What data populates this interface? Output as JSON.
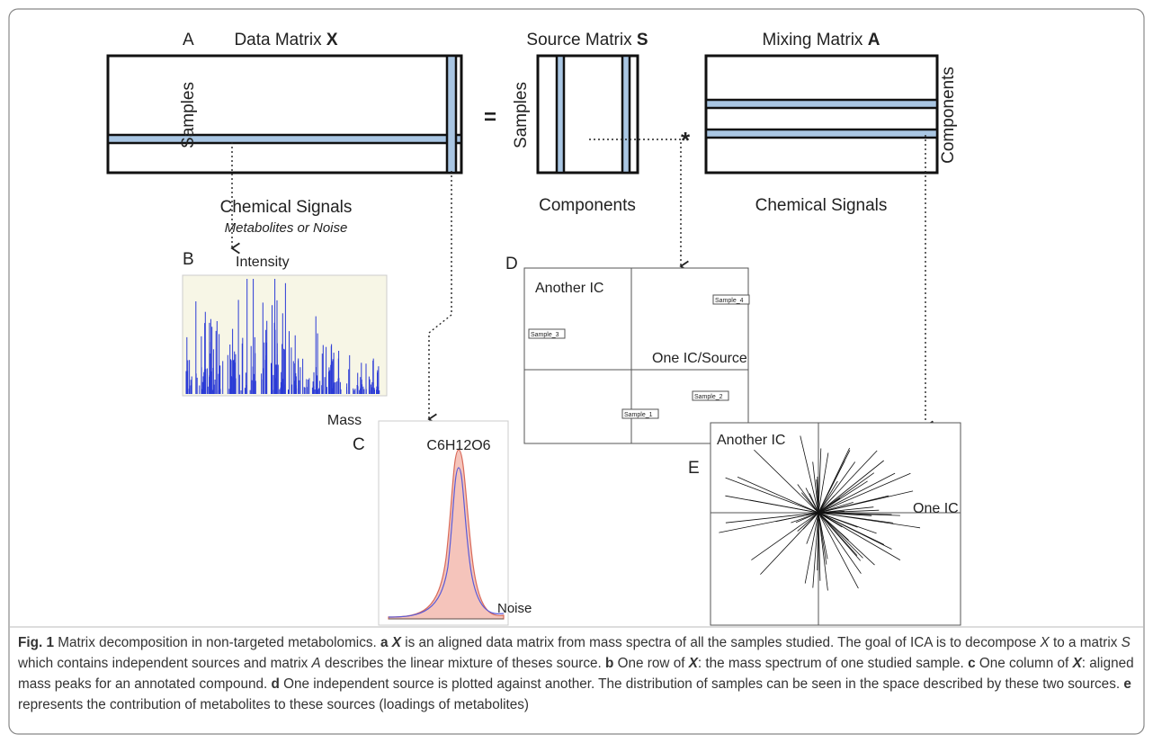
{
  "figure": {
    "panel_a": {
      "label": "A",
      "data_title": [
        "Data Matrix",
        "X"
      ],
      "source_title": [
        "Source Matrix",
        "S"
      ],
      "mixing_title": [
        "Mixing Matrix",
        "A"
      ],
      "samples_left": "Samples",
      "samples_mid": "Samples",
      "components_right": "Components",
      "equals": "=",
      "times": "*",
      "chemical_signals_left": "Chemical Signals",
      "metabolites_note": "Metabolites or Noise",
      "components_bottom": "Components",
      "chemical_signals_right": "Chemical Signals"
    },
    "panel_b": {
      "label": "B",
      "y_label": "Intensity",
      "x_label": "Mass"
    },
    "panel_c": {
      "label": "C",
      "compound": "C6H12O6",
      "noise": "Noise"
    },
    "panel_d": {
      "label": "D",
      "y_label": "Another IC",
      "x_label": "One IC/Source",
      "samples": [
        "Sample_1",
        "Sample_2",
        "Sample_3",
        "Sample_4"
      ]
    },
    "panel_e": {
      "label": "E",
      "y_label": "Another IC",
      "x_label": "One IC"
    }
  },
  "caption": {
    "parts": [
      "Fig. 1",
      "Matrix decomposition in non-targeted metabolomics.",
      "a",
      "X",
      "is an aligned data matrix from mass spectra of all the samples studied. The goal of ICA is to decompose",
      "X",
      "to a matrix",
      "S",
      "which contains independent sources and matrix",
      "A",
      "describes the linear mixture of theses source.",
      "b",
      "One row of",
      "X",
      ": the mass spectrum of one studied sample.",
      "c",
      "One column of",
      "X",
      ": aligned mass peaks for an annotated compound.",
      "d",
      "One independent source is plotted against another. The distribution of samples can be seen in the space described by these two sources.",
      "e",
      "represents the contribution of metabolites to these sources (loadings of metabolites)"
    ]
  }
}
